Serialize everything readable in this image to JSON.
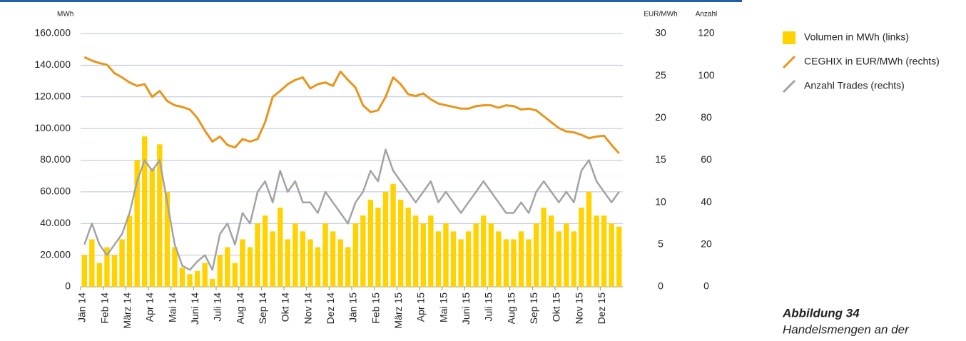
{
  "chart_data": {
    "type": "bar_line",
    "y_label": "MWh",
    "y2_label": "EUR/MWh",
    "y3_label": "Anzahl",
    "categories": [
      "Jän 14",
      null,
      null,
      "Feb 14",
      null,
      null,
      "März 14",
      null,
      null,
      "Apr 14",
      null,
      null,
      "Mai 14",
      null,
      null,
      "Juni 14",
      null,
      null,
      "Juli 14",
      null,
      null,
      "Aug 14",
      null,
      null,
      "Sep 14",
      null,
      null,
      "Okt 14",
      null,
      null,
      "Nov 14",
      null,
      null,
      "Dez 14",
      null,
      null,
      "Jän 15",
      null,
      null,
      "Feb 15",
      null,
      null,
      "März 15",
      null,
      null,
      "Apr 15",
      null,
      null,
      "Mai 15",
      null,
      null,
      "Juni 15",
      null,
      null,
      "Juli 15",
      null,
      null,
      "Aug 15",
      null,
      null,
      "Sep 15",
      null,
      null,
      "Okt 15",
      null,
      null,
      "Nov 15",
      null,
      null,
      "Dez 15",
      null,
      null
    ],
    "series": [
      {
        "name": "Volumen in MWh (links)",
        "color": "#ffd200",
        "kind": "bar",
        "axis": "y",
        "values": [
          20000,
          30000,
          15000,
          25000,
          20000,
          30000,
          45000,
          80000,
          95000,
          75000,
          90000,
          60000,
          25000,
          12000,
          8000,
          10000,
          15000,
          5000,
          20000,
          25000,
          15000,
          30000,
          25000,
          40000,
          45000,
          35000,
          50000,
          30000,
          40000,
          35000,
          30000,
          25000,
          40000,
          35000,
          30000,
          25000,
          40000,
          45000,
          55000,
          50000,
          60000,
          65000,
          55000,
          50000,
          45000,
          40000,
          45000,
          35000,
          40000,
          35000,
          30000,
          35000,
          40000,
          45000,
          40000,
          35000,
          30000,
          30000,
          35000,
          30000,
          40000,
          50000,
          45000,
          35000,
          40000,
          35000,
          50000,
          60000,
          45000,
          45000,
          40000,
          38000
        ]
      },
      {
        "name": "CEGHIX in EUR/MWh (rechts)",
        "color": "#e8951c",
        "kind": "line",
        "axis": "y2",
        "values": [
          27.2,
          26.8,
          26.5,
          26.3,
          25.3,
          24.8,
          24.2,
          23.8,
          24.0,
          22.5,
          23.2,
          22.0,
          21.5,
          21.3,
          21.0,
          20.0,
          18.5,
          17.2,
          17.8,
          16.8,
          16.5,
          17.5,
          17.2,
          17.5,
          19.5,
          22.5,
          23.2,
          24.0,
          24.5,
          24.8,
          23.5,
          24.0,
          24.2,
          23.8,
          25.5,
          24.5,
          23.6,
          21.5,
          20.7,
          20.9,
          22.5,
          24.8,
          24.0,
          22.8,
          22.6,
          22.9,
          22.2,
          21.7,
          21.5,
          21.3,
          21.1,
          21.1,
          21.4,
          21.5,
          21.5,
          21.2,
          21.5,
          21.4,
          21.0,
          21.1,
          20.9,
          20.2,
          19.5,
          18.8,
          18.4,
          18.3,
          18.0,
          17.6,
          17.8,
          17.9,
          16.8,
          15.8
        ]
      },
      {
        "name": "Anzahl Trades (rechts)",
        "color": "#a3a3a3",
        "kind": "line",
        "axis": "y3",
        "values": [
          20,
          30,
          20,
          15,
          20,
          25,
          35,
          50,
          60,
          55,
          60,
          40,
          20,
          10,
          8,
          12,
          15,
          8,
          25,
          30,
          20,
          35,
          30,
          45,
          50,
          40,
          55,
          45,
          50,
          40,
          40,
          35,
          45,
          40,
          35,
          30,
          40,
          45,
          55,
          50,
          65,
          55,
          50,
          45,
          40,
          45,
          50,
          40,
          45,
          40,
          35,
          40,
          45,
          50,
          45,
          40,
          35,
          35,
          40,
          35,
          45,
          50,
          45,
          40,
          45,
          40,
          55,
          60,
          50,
          45,
          40,
          45
        ]
      }
    ],
    "ylim": [
      0,
      160000
    ],
    "yticks": [
      0,
      {
        "value": 20000,
        "label": "20.000"
      },
      {
        "value": 40000,
        "label": "40.000"
      },
      {
        "value": 60000,
        "label": "60.000"
      },
      {
        "value": 80000,
        "label": "80.000"
      },
      {
        "value": 100000,
        "label": "100.000"
      },
      {
        "value": 120000,
        "label": "120.000"
      },
      {
        "value": 140000,
        "label": "140.000"
      },
      {
        "value": 160000,
        "label": "160.000"
      }
    ],
    "y2lim": [
      0,
      30
    ],
    "y2ticks": [
      0,
      5,
      10,
      15,
      20,
      25,
      30
    ],
    "y3lim": [
      0,
      120
    ],
    "y3ticks": [
      0,
      20,
      40,
      60,
      80,
      100,
      120
    ],
    "grid": true
  },
  "caption": {
    "number": "Abbildung 34",
    "text": "Handelsmengen an der"
  }
}
